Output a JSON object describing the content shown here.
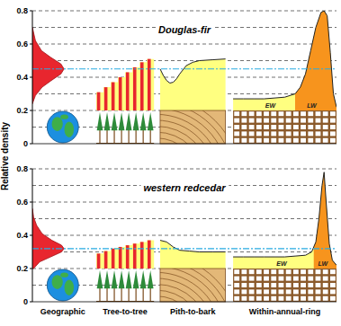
{
  "chart_data": {
    "type": "panel",
    "y_label": "Relative density",
    "categories": [
      "Geographic",
      "Tree-to-tree",
      "Pith-to-bark",
      "Within-annual-ring"
    ],
    "ylim": [
      0,
      0.8
    ],
    "yticks": [
      0,
      0.2,
      0.4,
      0.6,
      0.8
    ],
    "grid": true,
    "grid_lines": [
      0.1,
      0.2,
      0.3,
      0.4,
      0.5,
      0.6,
      0.7,
      0.8
    ],
    "base": 0.2,
    "panels": [
      {
        "title": "Douglas-fir",
        "mean": 0.45,
        "geographic": {
          "y": [
            0.24,
            0.29,
            0.34,
            0.38,
            0.42,
            0.45,
            0.48,
            0.52,
            0.56,
            0.62,
            0.7
          ],
          "values": [
            0,
            0.05,
            0.16,
            0.31,
            0.47,
            0.52,
            0.47,
            0.3,
            0.15,
            0.05,
            0
          ]
        },
        "tree_to_tree": {
          "values": [
            0.31,
            0.34,
            0.37,
            0.4,
            0.43,
            0.46,
            0.49,
            0.51
          ]
        },
        "pith_to_bark": {
          "x": [
            0,
            0.05,
            0.1,
            0.15,
            0.2,
            0.25,
            0.3,
            0.4,
            0.5,
            0.6,
            0.8,
            1
          ],
          "values": [
            0.45,
            0.41,
            0.38,
            0.365,
            0.37,
            0.39,
            0.42,
            0.47,
            0.49,
            0.5,
            0.505,
            0.51
          ]
        },
        "within_annual_ring": {
          "x": [
            0,
            0.1,
            0.2,
            0.3,
            0.4,
            0.5,
            0.6,
            0.65,
            0.7,
            0.75,
            0.8,
            0.85,
            0.88,
            0.91,
            0.94,
            0.97,
            1
          ],
          "values": [
            0.27,
            0.27,
            0.27,
            0.27,
            0.275,
            0.28,
            0.3,
            0.34,
            0.42,
            0.56,
            0.7,
            0.79,
            0.8,
            0.77,
            0.55,
            0.3,
            0.22
          ],
          "latewood_start": 0.6,
          "labels": [
            "EW",
            "LW"
          ]
        }
      },
      {
        "title": "western redcedar",
        "mean": 0.32,
        "geographic": {
          "y": [
            0.2,
            0.24,
            0.27,
            0.3,
            0.32,
            0.34,
            0.37,
            0.41,
            0.46,
            0.51,
            0.56
          ],
          "values": [
            0.02,
            0.12,
            0.3,
            0.48,
            0.52,
            0.48,
            0.32,
            0.16,
            0.07,
            0.02,
            0
          ]
        },
        "tree_to_tree": {
          "values": [
            0.29,
            0.305,
            0.32,
            0.33,
            0.34,
            0.35,
            0.36,
            0.37
          ]
        },
        "pith_to_bark": {
          "x": [
            0,
            0.1,
            0.2,
            0.3,
            0.45,
            0.6,
            0.8,
            1
          ],
          "values": [
            0.37,
            0.36,
            0.33,
            0.31,
            0.305,
            0.3,
            0.3,
            0.3
          ]
        },
        "within_annual_ring": {
          "x": [
            0,
            0.1,
            0.2,
            0.3,
            0.4,
            0.5,
            0.6,
            0.7,
            0.76,
            0.8,
            0.83,
            0.86,
            0.88,
            0.9,
            0.93,
            0.96,
            1
          ],
          "values": [
            0.27,
            0.27,
            0.27,
            0.27,
            0.27,
            0.27,
            0.275,
            0.28,
            0.3,
            0.36,
            0.5,
            0.7,
            0.78,
            0.6,
            0.35,
            0.25,
            0.22
          ],
          "latewood_start": 0.78,
          "labels": [
            "EW",
            "LW"
          ]
        }
      }
    ]
  }
}
